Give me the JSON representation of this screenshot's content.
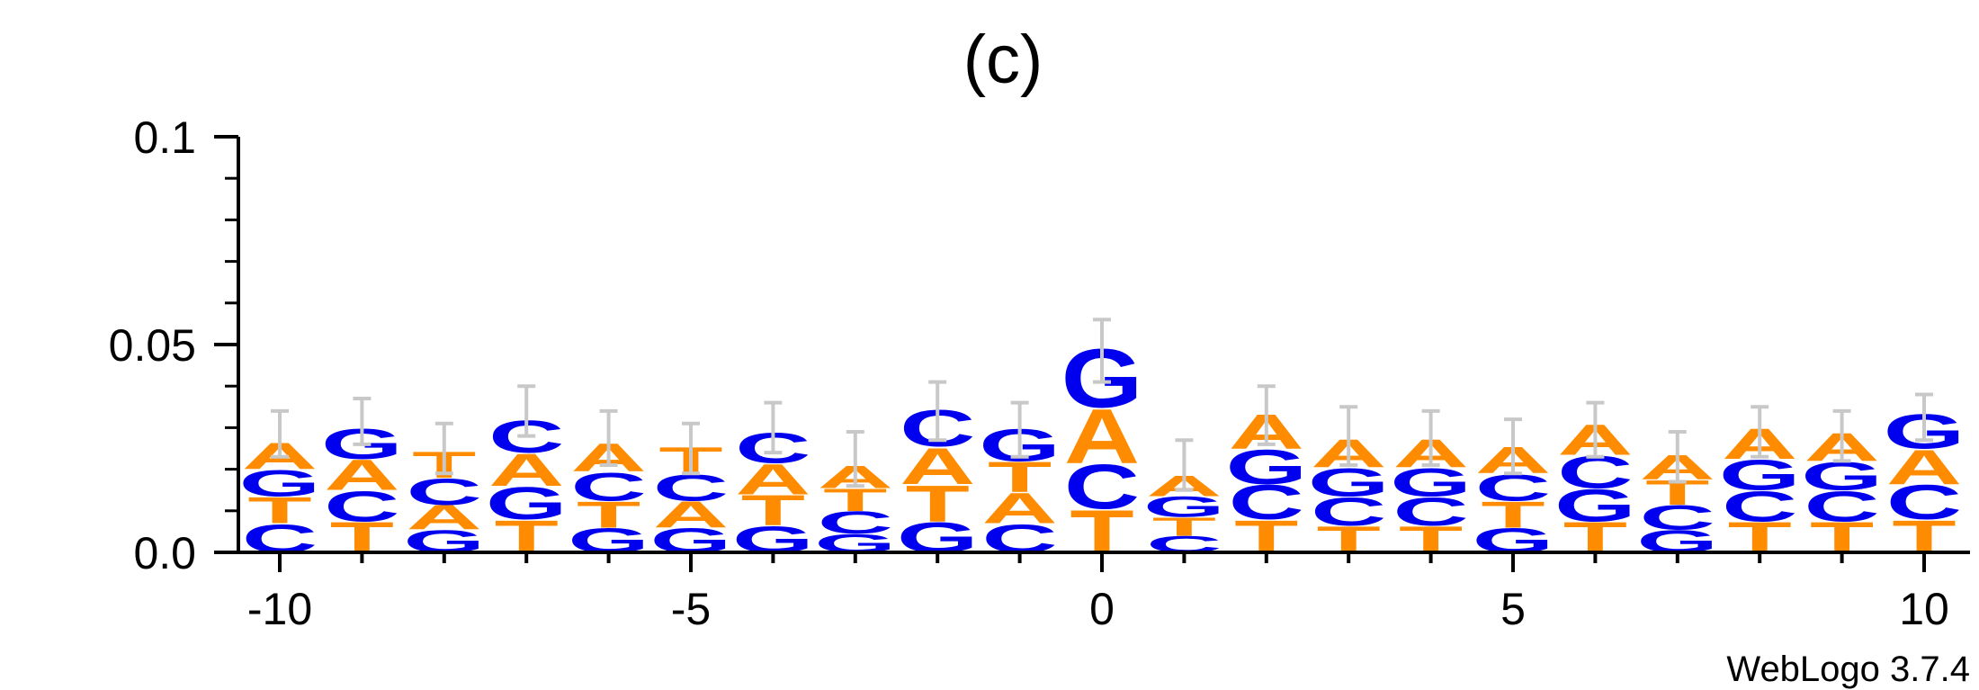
{
  "chart_data": {
    "type": "sequence-logo",
    "title": "(c)",
    "footer": "WebLogo 3.7.4",
    "ylim": [
      0,
      0.1
    ],
    "y_ticks": [
      {
        "value": 0,
        "label": "0.0"
      },
      {
        "value": 0.05,
        "label": "0.05"
      },
      {
        "value": 0.1,
        "label": "0.1"
      }
    ],
    "x_ticks": [
      {
        "value": -10,
        "label": "-10"
      },
      {
        "value": -5,
        "label": "-5"
      },
      {
        "value": 0,
        "label": "0"
      },
      {
        "value": 5,
        "label": "5"
      },
      {
        "value": 10,
        "label": "10"
      }
    ],
    "xlim": [
      -10.5,
      10.5
    ],
    "colors": {
      "A": "#FF8C00",
      "T": "#FF8C00",
      "C": "#0000EE",
      "G": "#0000EE",
      "errorbar": "#C8C8C8"
    },
    "positions": [
      {
        "pos": -10,
        "stack": [
          [
            "C",
            0.007
          ],
          [
            "T",
            0.0065
          ],
          [
            "G",
            0.0065
          ],
          [
            "A",
            0.0065
          ]
        ],
        "err": [
          0.023,
          0.034
        ]
      },
      {
        "pos": -9,
        "stack": [
          [
            "T",
            0.0075
          ],
          [
            "C",
            0.0075
          ],
          [
            "A",
            0.0075
          ],
          [
            "G",
            0.0075
          ]
        ],
        "err": [
          0.026,
          0.037
        ]
      },
      {
        "pos": -8,
        "stack": [
          [
            "G",
            0.0055
          ],
          [
            "A",
            0.006
          ],
          [
            "C",
            0.0065
          ],
          [
            "T",
            0.0065
          ]
        ],
        "err": [
          0.019,
          0.031
        ]
      },
      {
        "pos": -7,
        "stack": [
          [
            "T",
            0.008
          ],
          [
            "G",
            0.008
          ],
          [
            "A",
            0.008
          ],
          [
            "C",
            0.008
          ]
        ],
        "err": [
          0.028,
          0.04
        ]
      },
      {
        "pos": -6,
        "stack": [
          [
            "G",
            0.006
          ],
          [
            "T",
            0.0065
          ],
          [
            "C",
            0.007
          ],
          [
            "A",
            0.007
          ]
        ],
        "err": [
          0.021,
          0.034
        ]
      },
      {
        "pos": -5,
        "stack": [
          [
            "G",
            0.006
          ],
          [
            "A",
            0.0065
          ],
          [
            "C",
            0.0065
          ],
          [
            "T",
            0.0065
          ]
        ],
        "err": [
          0.019,
          0.031
        ]
      },
      {
        "pos": -4,
        "stack": [
          [
            "G",
            0.0065
          ],
          [
            "T",
            0.0075
          ],
          [
            "A",
            0.0075
          ],
          [
            "C",
            0.0075
          ]
        ],
        "err": [
          0.024,
          0.036
        ]
      },
      {
        "pos": -3,
        "stack": [
          [
            "G",
            0.0045
          ],
          [
            "C",
            0.0055
          ],
          [
            "T",
            0.0055
          ],
          [
            "A",
            0.0055
          ]
        ],
        "err": [
          0.016,
          0.029
        ]
      },
      {
        "pos": -2,
        "stack": [
          [
            "G",
            0.0075
          ],
          [
            "T",
            0.009
          ],
          [
            "A",
            0.009
          ],
          [
            "C",
            0.009
          ]
        ],
        "err": [
          0.027,
          0.041
        ]
      },
      {
        "pos": -1,
        "stack": [
          [
            "C",
            0.007
          ],
          [
            "A",
            0.0075
          ],
          [
            "T",
            0.0075
          ],
          [
            "G",
            0.008
          ]
        ],
        "err": [
          0.023,
          0.036
        ]
      },
      {
        "pos": 0,
        "stack": [
          [
            "T",
            0.0105
          ],
          [
            "C",
            0.011
          ],
          [
            "A",
            0.0135
          ],
          [
            "G",
            0.0145
          ]
        ],
        "err": [
          0.041,
          0.056
        ]
      },
      {
        "pos": 1,
        "stack": [
          [
            "C",
            0.004
          ],
          [
            "T",
            0.0045
          ],
          [
            "G",
            0.005
          ],
          [
            "A",
            0.005
          ]
        ],
        "err": [
          0.015,
          0.027
        ]
      },
      {
        "pos": 2,
        "stack": [
          [
            "T",
            0.008
          ],
          [
            "C",
            0.0085
          ],
          [
            "G",
            0.0085
          ],
          [
            "A",
            0.0085
          ]
        ],
        "err": [
          0.026,
          0.04
        ]
      },
      {
        "pos": 3,
        "stack": [
          [
            "T",
            0.0065
          ],
          [
            "C",
            0.007
          ],
          [
            "G",
            0.007
          ],
          [
            "A",
            0.007
          ]
        ],
        "err": [
          0.021,
          0.035
        ]
      },
      {
        "pos": 4,
        "stack": [
          [
            "T",
            0.0065
          ],
          [
            "C",
            0.007
          ],
          [
            "G",
            0.007
          ],
          [
            "A",
            0.007
          ]
        ],
        "err": [
          0.021,
          0.034
        ]
      },
      {
        "pos": 5,
        "stack": [
          [
            "G",
            0.006
          ],
          [
            "T",
            0.0065
          ],
          [
            "C",
            0.0065
          ],
          [
            "A",
            0.0065
          ]
        ],
        "err": [
          0.019,
          0.032
        ]
      },
      {
        "pos": 6,
        "stack": [
          [
            "T",
            0.0075
          ],
          [
            "G",
            0.008
          ],
          [
            "C",
            0.008
          ],
          [
            "A",
            0.0075
          ]
        ],
        "err": [
          0.023,
          0.036
        ]
      },
      {
        "pos": 7,
        "stack": [
          [
            "G",
            0.0055
          ],
          [
            "C",
            0.006
          ],
          [
            "T",
            0.006
          ],
          [
            "A",
            0.006
          ]
        ],
        "err": [
          0.017,
          0.029
        ]
      },
      {
        "pos": 8,
        "stack": [
          [
            "T",
            0.0075
          ],
          [
            "C",
            0.0075
          ],
          [
            "G",
            0.0075
          ],
          [
            "A",
            0.0075
          ]
        ],
        "err": [
          0.023,
          0.035
        ]
      },
      {
        "pos": 9,
        "stack": [
          [
            "T",
            0.0075
          ],
          [
            "C",
            0.0075
          ],
          [
            "G",
            0.007
          ],
          [
            "A",
            0.007
          ]
        ],
        "err": [
          0.022,
          0.034
        ]
      },
      {
        "pos": 10,
        "stack": [
          [
            "T",
            0.008
          ],
          [
            "C",
            0.0085
          ],
          [
            "A",
            0.0085
          ],
          [
            "G",
            0.0085
          ]
        ],
        "err": [
          0.027,
          0.038
        ]
      }
    ]
  }
}
